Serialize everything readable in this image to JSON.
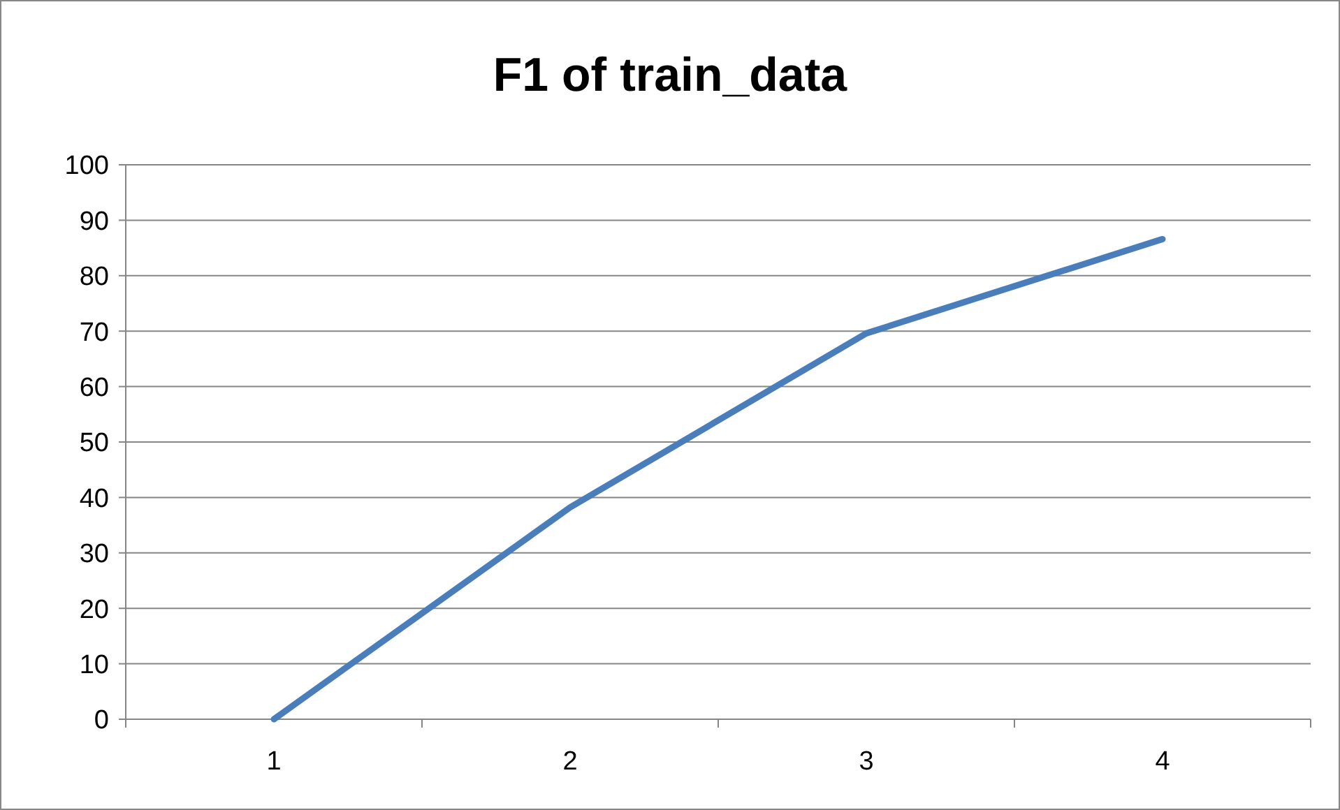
{
  "chart_data": {
    "type": "line",
    "title": "F1 of train_data",
    "categories": [
      "1",
      "2",
      "3",
      "4"
    ],
    "series": [
      {
        "color": "#4a7ebb",
        "values": [
          0,
          38.2,
          69.6,
          86.6
        ]
      }
    ],
    "ylim": [
      0,
      100
    ],
    "yticks": [
      0,
      10,
      20,
      30,
      40,
      50,
      60,
      70,
      80,
      90,
      100
    ],
    "grid": "y"
  }
}
